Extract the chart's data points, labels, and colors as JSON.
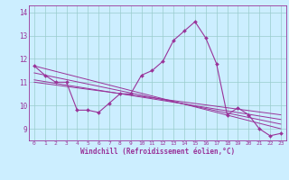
{
  "title": "",
  "xlabel": "Windchill (Refroidissement éolien,°C)",
  "background_color": "#cceeff",
  "line_color": "#993399",
  "grid_color": "#99cccc",
  "xlim": [
    -0.5,
    23.5
  ],
  "ylim": [
    8.5,
    14.3
  ],
  "yticks": [
    9,
    10,
    11,
    12,
    13,
    14
  ],
  "xticks": [
    0,
    1,
    2,
    3,
    4,
    5,
    6,
    7,
    8,
    9,
    10,
    11,
    12,
    13,
    14,
    15,
    16,
    17,
    18,
    19,
    20,
    21,
    22,
    23
  ],
  "series1": {
    "x": [
      0,
      1,
      2,
      3,
      4,
      5,
      6,
      7,
      8,
      9,
      10,
      11,
      12,
      13,
      14,
      15,
      16,
      17,
      18,
      19,
      20,
      21,
      22,
      23
    ],
    "y": [
      11.7,
      11.3,
      11.0,
      11.0,
      9.8,
      9.8,
      9.7,
      10.1,
      10.5,
      10.5,
      11.3,
      11.5,
      11.9,
      12.8,
      13.2,
      13.6,
      12.9,
      11.8,
      9.6,
      9.9,
      9.6,
      9.0,
      8.7,
      8.8
    ]
  },
  "series2": {
    "x": [
      0,
      23
    ],
    "y": [
      11.7,
      9.0
    ]
  },
  "series3": {
    "x": [
      0,
      23
    ],
    "y": [
      11.4,
      9.2
    ]
  },
  "series4": {
    "x": [
      0,
      23
    ],
    "y": [
      11.1,
      9.4
    ]
  },
  "series5": {
    "x": [
      0,
      23
    ],
    "y": [
      11.0,
      9.6
    ]
  }
}
